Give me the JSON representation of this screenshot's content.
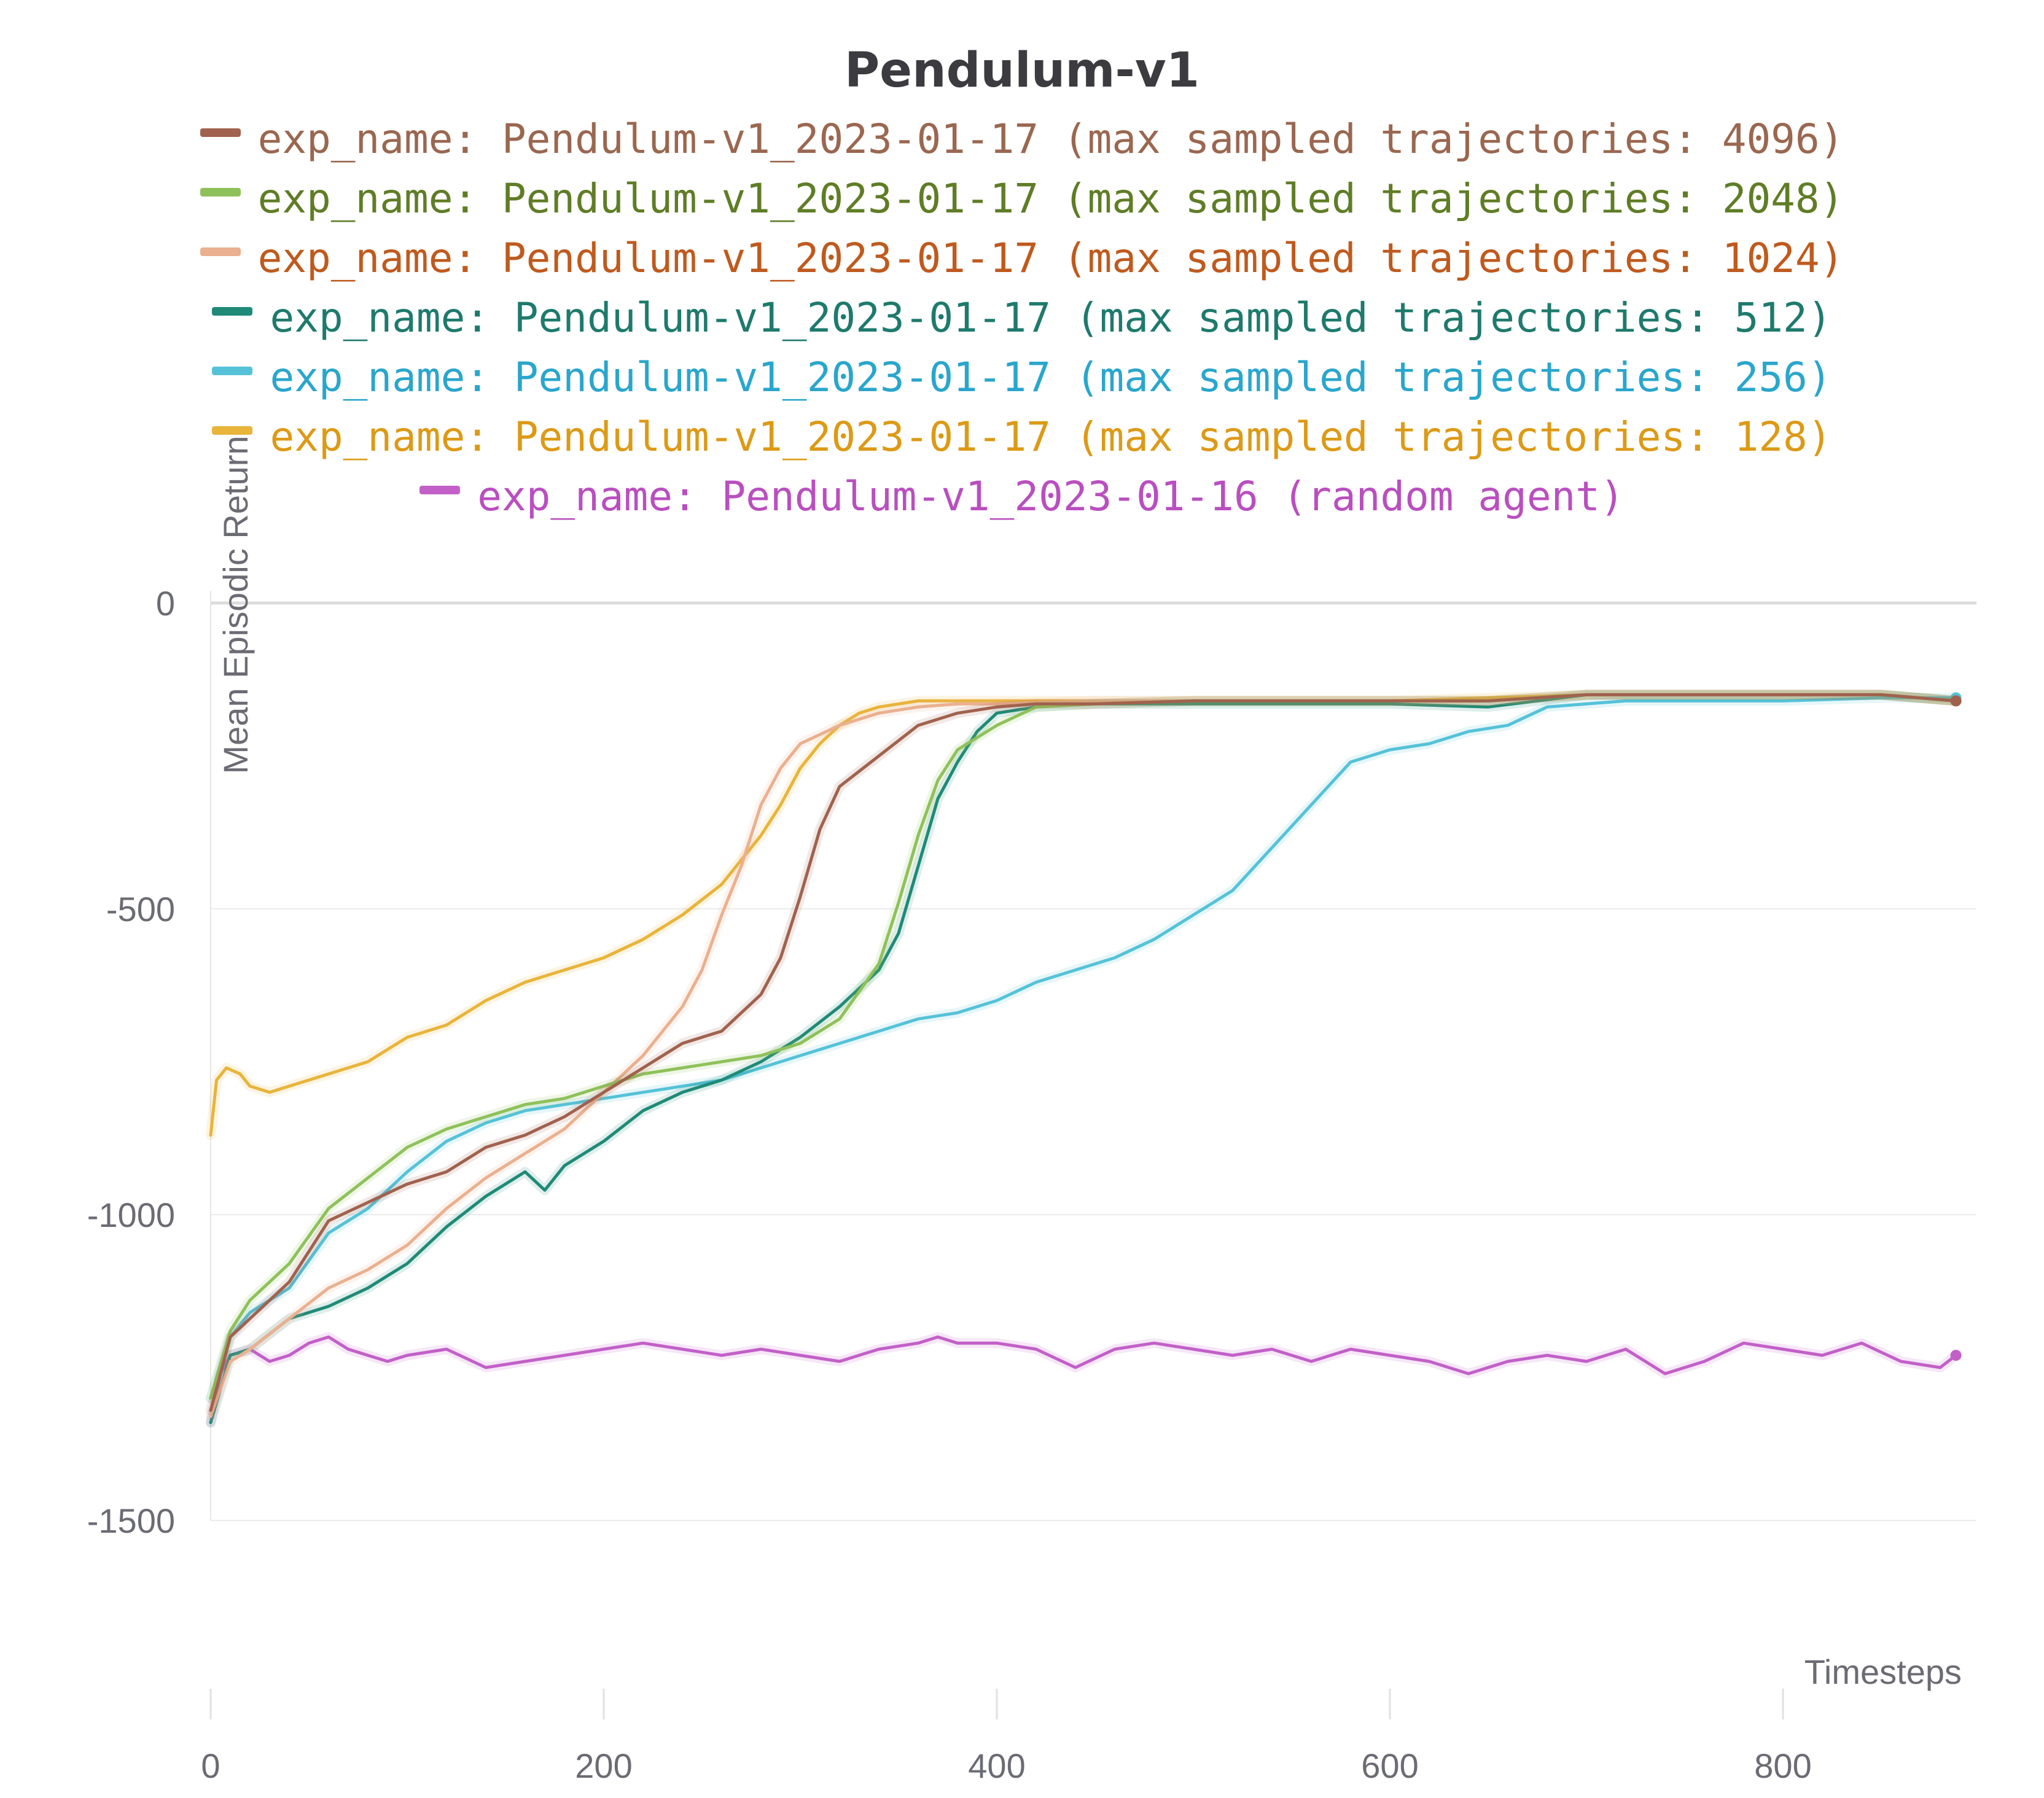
{
  "chart_data": {
    "type": "line",
    "title": "Pendulum-v1",
    "xlabel": "Timesteps",
    "ylabel": "Mean Episodic Return",
    "xlim": [
      0,
      900
    ],
    "ylim": [
      -1500,
      0
    ],
    "x_ticks": [
      0,
      200,
      400,
      600,
      800
    ],
    "y_ticks": [
      0,
      -500,
      -1000,
      -1500
    ],
    "x_tick_labels": [
      "0",
      "200",
      "400",
      "600",
      "800"
    ],
    "y_tick_labels": [
      "0",
      "-500",
      "-1000",
      "-1500"
    ],
    "grid": true,
    "legend_position": "top",
    "series": [
      {
        "name": "exp_name: Pendulum-v1_2023-01-17 (max sampled trajectories: 4096)",
        "color": "#a0624e",
        "text_color": "#9a6750",
        "x": [
          0,
          10,
          20,
          40,
          60,
          80,
          100,
          120,
          140,
          160,
          180,
          200,
          220,
          240,
          260,
          270,
          280,
          290,
          300,
          310,
          320,
          340,
          360,
          380,
          400,
          420,
          450,
          500,
          550,
          600,
          650,
          700,
          750,
          800,
          850,
          888
        ],
        "values": [
          -1320,
          -1200,
          -1170,
          -1110,
          -1010,
          -980,
          -950,
          -930,
          -890,
          -870,
          -840,
          -800,
          -760,
          -720,
          -700,
          -670,
          -640,
          -580,
          -480,
          -370,
          -300,
          -250,
          -200,
          -180,
          -170,
          -165,
          -165,
          -160,
          -160,
          -160,
          -160,
          -150,
          -150,
          -150,
          -150,
          -160
        ]
      },
      {
        "name": "exp_name: Pendulum-v1_2023-01-17 (max sampled trajectories: 2048)",
        "color": "#8fc15a",
        "text_color": "#5f7d26",
        "x": [
          0,
          10,
          20,
          40,
          60,
          80,
          100,
          120,
          140,
          160,
          180,
          200,
          220,
          240,
          260,
          280,
          300,
          320,
          340,
          350,
          360,
          370,
          380,
          400,
          420,
          450,
          500,
          550,
          600,
          650,
          700,
          750,
          800,
          850,
          888
        ],
        "values": [
          -1300,
          -1190,
          -1140,
          -1080,
          -990,
          -940,
          -890,
          -860,
          -840,
          -820,
          -810,
          -790,
          -770,
          -760,
          -750,
          -740,
          -720,
          -680,
          -590,
          -490,
          -380,
          -290,
          -240,
          -200,
          -170,
          -165,
          -160,
          -160,
          -160,
          -160,
          -150,
          -150,
          -150,
          -150,
          -160
        ]
      },
      {
        "name": "exp_name: Pendulum-v1_2023-01-17 (max sampled trajectories: 1024)",
        "color": "#eab08f",
        "text_color": "#bf5a1e",
        "x": [
          0,
          10,
          20,
          40,
          60,
          80,
          100,
          120,
          140,
          160,
          180,
          200,
          220,
          240,
          250,
          260,
          270,
          280,
          290,
          300,
          320,
          340,
          360,
          380,
          400,
          450,
          500,
          550,
          600,
          650,
          700,
          750,
          800,
          850,
          888
        ],
        "values": [
          -1330,
          -1240,
          -1220,
          -1170,
          -1120,
          -1090,
          -1050,
          -990,
          -940,
          -900,
          -860,
          -800,
          -740,
          -660,
          -600,
          -510,
          -430,
          -330,
          -270,
          -230,
          -200,
          -180,
          -170,
          -165,
          -165,
          -160,
          -160,
          -160,
          -160,
          -160,
          -150,
          -150,
          -150,
          -150,
          -160
        ]
      },
      {
        "name": "exp_name: Pendulum-v1_2023-01-17 (max sampled trajectories: 512)",
        "color": "#1f8a77",
        "text_color": "#1e7a6c",
        "x": [
          0,
          10,
          20,
          40,
          60,
          80,
          100,
          120,
          140,
          160,
          170,
          180,
          200,
          220,
          240,
          260,
          280,
          300,
          320,
          340,
          350,
          360,
          370,
          380,
          390,
          400,
          420,
          450,
          500,
          550,
          600,
          650,
          700,
          750,
          800,
          850,
          888
        ],
        "values": [
          -1340,
          -1230,
          -1220,
          -1170,
          -1150,
          -1120,
          -1080,
          -1020,
          -970,
          -930,
          -960,
          -920,
          -880,
          -830,
          -800,
          -780,
          -750,
          -710,
          -660,
          -600,
          -540,
          -430,
          -320,
          -260,
          -210,
          -180,
          -170,
          -165,
          -165,
          -165,
          -165,
          -170,
          -150,
          -150,
          -150,
          -150,
          -160
        ]
      },
      {
        "name": "exp_name: Pendulum-v1_2023-01-17 (max sampled trajectories: 256)",
        "color": "#55c2d8",
        "text_color": "#2aa6cc",
        "x": [
          0,
          10,
          20,
          40,
          60,
          80,
          100,
          120,
          140,
          160,
          180,
          200,
          220,
          240,
          260,
          280,
          300,
          320,
          340,
          360,
          380,
          400,
          420,
          440,
          460,
          480,
          500,
          520,
          540,
          560,
          580,
          600,
          620,
          640,
          660,
          680,
          700,
          720,
          740,
          760,
          780,
          800,
          850,
          888
        ],
        "values": [
          -1300,
          -1200,
          -1160,
          -1120,
          -1030,
          -990,
          -930,
          -880,
          -850,
          -830,
          -820,
          -810,
          -800,
          -790,
          -780,
          -760,
          -740,
          -720,
          -700,
          -680,
          -670,
          -650,
          -620,
          -600,
          -580,
          -550,
          -510,
          -470,
          -400,
          -330,
          -260,
          -240,
          -230,
          -210,
          -200,
          -170,
          -165,
          -160,
          -160,
          -160,
          -160,
          -160,
          -155,
          -155
        ]
      },
      {
        "name": "exp_name: Pendulum-v1_2023-01-17 (max sampled trajectories: 128)",
        "color": "#e8b43a",
        "text_color": "#dc9a16",
        "x": [
          0,
          3,
          8,
          15,
          20,
          30,
          40,
          60,
          80,
          100,
          120,
          140,
          160,
          180,
          200,
          220,
          240,
          260,
          270,
          280,
          290,
          300,
          310,
          320,
          330,
          340,
          350,
          360,
          380,
          400,
          450,
          500,
          550,
          600,
          650,
          700,
          750,
          800,
          850,
          888
        ],
        "values": [
          -870,
          -780,
          -760,
          -770,
          -790,
          -800,
          -790,
          -770,
          -750,
          -710,
          -690,
          -650,
          -620,
          -600,
          -580,
          -550,
          -510,
          -460,
          -420,
          -380,
          -330,
          -270,
          -230,
          -200,
          -180,
          -170,
          -165,
          -160,
          -160,
          -160,
          -160,
          -160,
          -160,
          -160,
          -155,
          -150,
          -150,
          -150,
          -150,
          -160
        ]
      },
      {
        "name": "exp_name: Pendulum-v1_2023-01-16 (random agent)",
        "color": "#c260c8",
        "text_color": "#b94fbf",
        "x": [
          0,
          5,
          10,
          20,
          30,
          40,
          50,
          60,
          70,
          80,
          90,
          100,
          120,
          140,
          160,
          180,
          200,
          220,
          240,
          260,
          280,
          300,
          320,
          340,
          360,
          370,
          380,
          400,
          420,
          440,
          460,
          480,
          500,
          520,
          540,
          560,
          580,
          600,
          620,
          640,
          660,
          680,
          700,
          720,
          740,
          760,
          780,
          800,
          820,
          840,
          860,
          880,
          888
        ],
        "values": [
          -1340,
          -1260,
          -1230,
          -1220,
          -1240,
          -1230,
          -1210,
          -1200,
          -1220,
          -1230,
          -1240,
          -1230,
          -1220,
          -1250,
          -1240,
          -1230,
          -1220,
          -1210,
          -1220,
          -1230,
          -1220,
          -1230,
          -1240,
          -1220,
          -1210,
          -1200,
          -1210,
          -1210,
          -1220,
          -1250,
          -1220,
          -1210,
          -1220,
          -1230,
          -1220,
          -1240,
          -1220,
          -1230,
          -1240,
          -1260,
          -1240,
          -1230,
          -1240,
          -1220,
          -1260,
          -1240,
          -1210,
          -1220,
          -1230,
          -1210,
          -1240,
          -1250,
          -1230
        ]
      }
    ]
  }
}
